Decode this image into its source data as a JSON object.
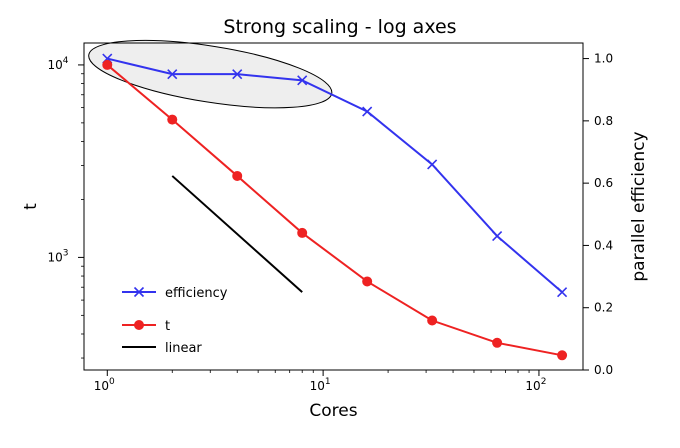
{
  "chart_data": {
    "type": "line",
    "title": "Strong scaling - log axes",
    "xlabel": "Cores",
    "ylabel_left": "t",
    "ylabel_right": "parallel efficiency",
    "x_scale": "log",
    "y_left_scale": "log",
    "y_right_scale": "linear",
    "xlim": [
      0.78,
      160
    ],
    "ylim_left": [
      260,
      13000
    ],
    "ylim_right": [
      0,
      1.05
    ],
    "x_ticks": [
      {
        "value": 1,
        "base": "10",
        "exp": "0"
      },
      {
        "value": 10,
        "base": "10",
        "exp": "1"
      },
      {
        "value": 100,
        "base": "10",
        "exp": "2"
      }
    ],
    "y_left_ticks": [
      {
        "value": 1000,
        "base": "10",
        "exp": "3"
      },
      {
        "value": 10000,
        "base": "10",
        "exp": "4"
      }
    ],
    "y_right_ticks": [
      {
        "value": 0.0,
        "label": "0.0"
      },
      {
        "value": 0.2,
        "label": "0.2"
      },
      {
        "value": 0.4,
        "label": "0.4"
      },
      {
        "value": 0.6,
        "label": "0.6"
      },
      {
        "value": 0.8,
        "label": "0.8"
      },
      {
        "value": 1.0,
        "label": "1.0"
      }
    ],
    "series": [
      {
        "name": "efficiency",
        "axis": "right",
        "color": "#3333ee",
        "marker": "x",
        "x": [
          1,
          2,
          4,
          8,
          16,
          32,
          64,
          128
        ],
        "values": [
          1.0,
          0.95,
          0.95,
          0.93,
          0.83,
          0.66,
          0.43,
          0.25
        ]
      },
      {
        "name": "t",
        "axis": "left",
        "color": "#ee2222",
        "marker": "o",
        "x": [
          1,
          2,
          4,
          8,
          16,
          32,
          64,
          128
        ],
        "values": [
          10000,
          5200,
          2650,
          1340,
          750,
          470,
          360,
          310
        ]
      },
      {
        "name": "linear",
        "axis": "left",
        "color": "#000000",
        "marker": "",
        "x": [
          2,
          8
        ],
        "values": [
          2650,
          660
        ]
      }
    ],
    "annotation": {
      "shape": "ellipse",
      "description": "grey highlight around efficiency points at 1-8 cores",
      "center_x": 3.0,
      "center_eff": 0.95,
      "fill": "#eeeeee",
      "stroke": "#000000"
    },
    "legend": {
      "placement": "lower-left",
      "entries": [
        "efficiency",
        "t",
        "linear"
      ]
    }
  }
}
